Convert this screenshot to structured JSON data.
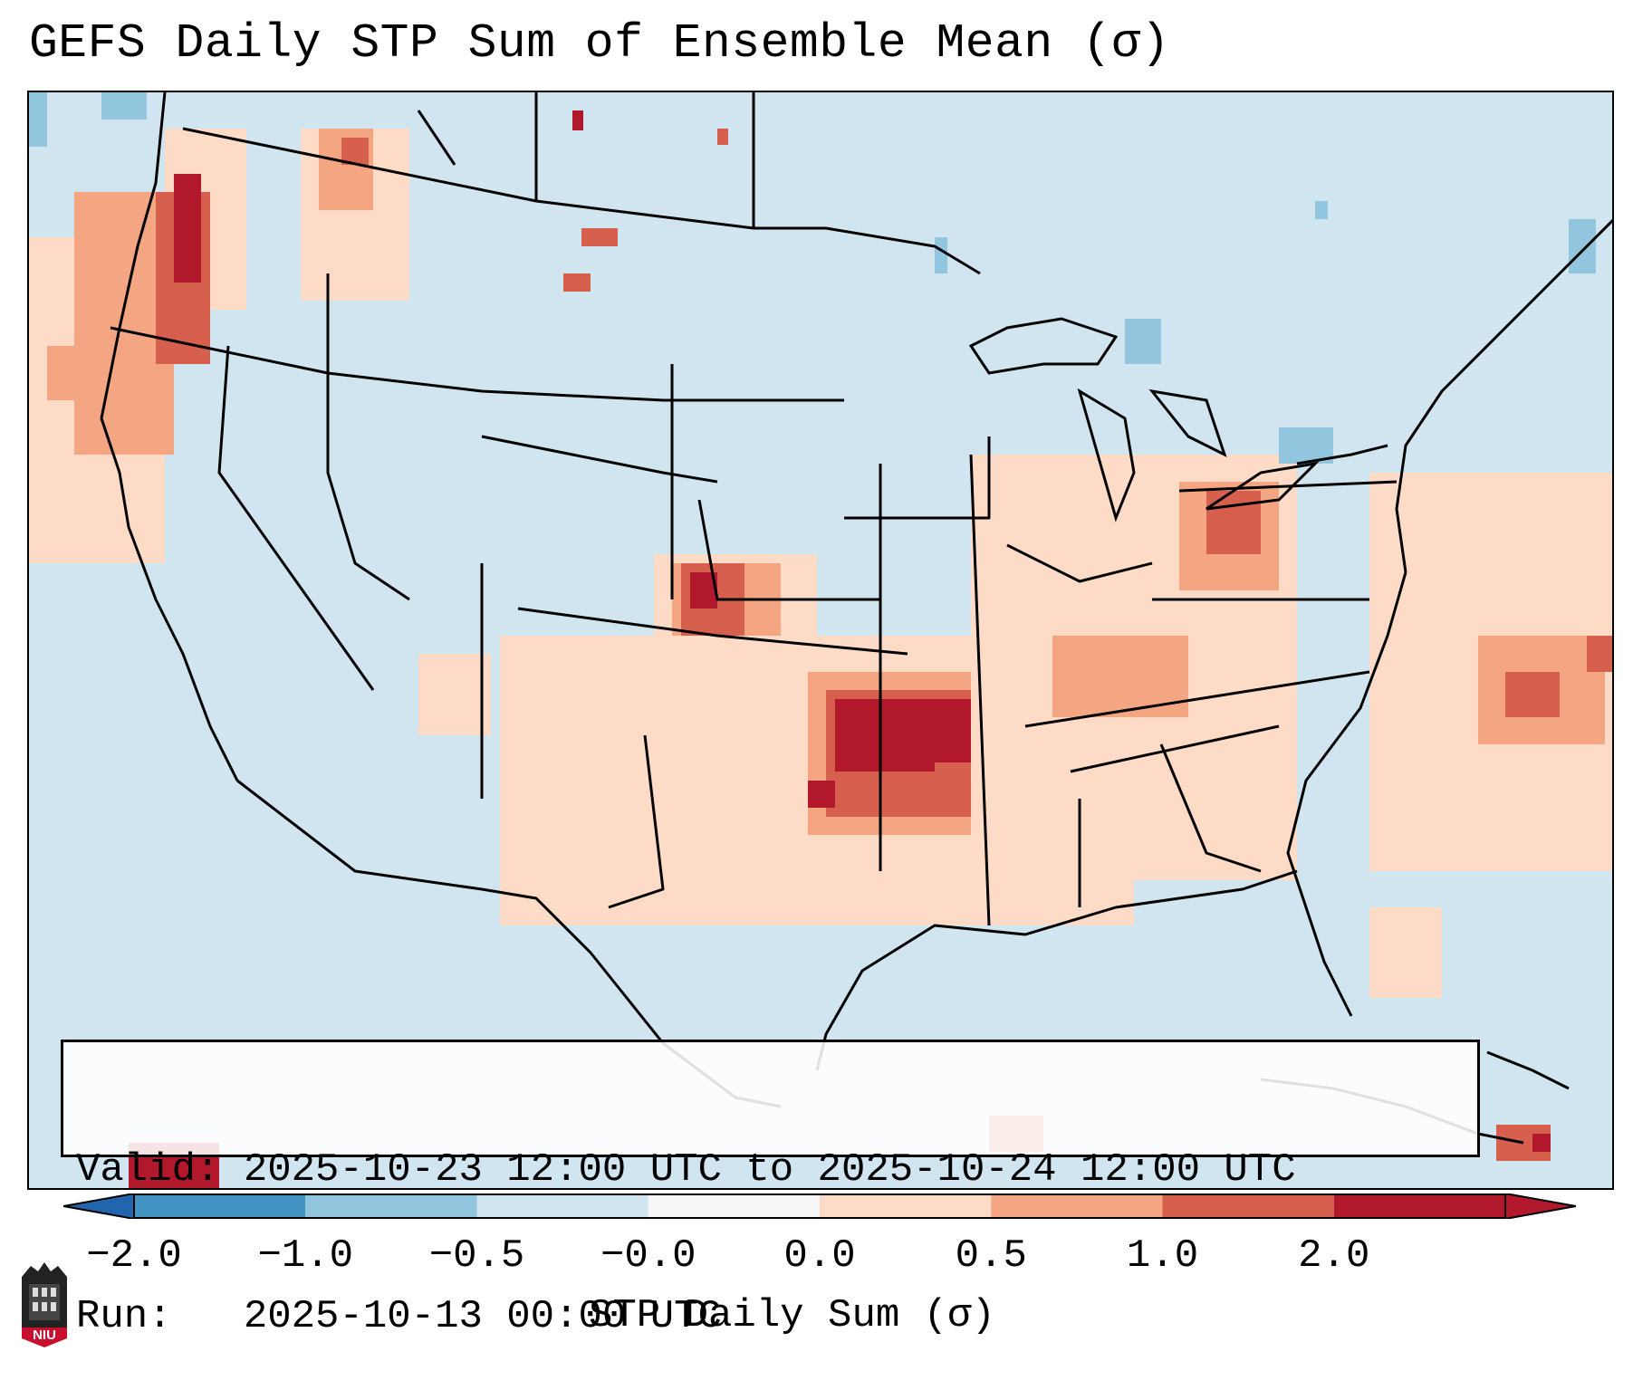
{
  "title": "GEFS Daily STP Sum of Ensemble Mean (σ)",
  "info": {
    "valid_line": "Valid: 2025-10-23 12:00 UTC to 2025-10-24 12:00 UTC",
    "run_line": "Run:   2025-10-13 00:00 UTC"
  },
  "colorbar": {
    "label": "STP Daily Sum (σ)",
    "tick_labels": [
      "−2.0",
      "−1.0",
      "−0.5",
      "−0.0",
      "0.0",
      "0.5",
      "1.0",
      "2.0"
    ],
    "colors": [
      "#4393c3",
      "#92c5de",
      "#d1e5f0",
      "#f7f7f7",
      "#fddbc7",
      "#f4a582",
      "#d6604d",
      "#b2182b"
    ],
    "under_color": "#2166ac",
    "over_color": "#b2182b"
  },
  "map": {
    "background_color": "#d1e5f0",
    "region": "Contiguous United States",
    "highlights": [
      {
        "area": "Pacific Northwest coast",
        "value": 1.0
      },
      {
        "area": "Western Kansas",
        "value": 1.5
      },
      {
        "area": "Central Oklahoma / NW Arkansas",
        "value": 1.5
      },
      {
        "area": "Ohio",
        "value": 1.0
      },
      {
        "area": "Western Atlantic",
        "value": 1.0
      }
    ]
  },
  "logo": {
    "text": "NIU"
  }
}
